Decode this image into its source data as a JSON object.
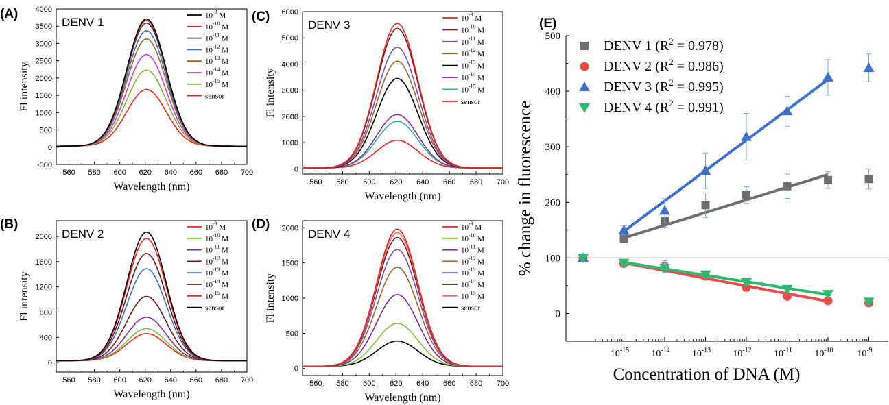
{
  "panels": [
    {
      "letter": "(A)",
      "label": "DENV 1",
      "xlabel": "Wavelength (nm)",
      "ylabel": "Fl intensity",
      "xlim": [
        550,
        700
      ],
      "ylim": [
        -500,
        4000
      ],
      "xticks": [
        560,
        580,
        600,
        620,
        640,
        660,
        680,
        700
      ],
      "yticks": [
        -500,
        0,
        500,
        1000,
        1500,
        2000,
        2500,
        3000,
        3500,
        4000
      ],
      "legend": [
        {
          "base": "10",
          "exp": "-9",
          "unit": "M",
          "color": "#000000"
        },
        {
          "base": "10",
          "exp": "-10",
          "unit": "M",
          "color": "#e8261d"
        },
        {
          "base": "10",
          "exp": "-11",
          "unit": "M",
          "color": "#3a3a3a"
        },
        {
          "base": "10",
          "exp": "-12",
          "unit": "M",
          "color": "#3d6fb0"
        },
        {
          "base": "10",
          "exp": "-13",
          "unit": "M",
          "color": "#a2622a"
        },
        {
          "base": "10",
          "exp": "-14",
          "unit": "M",
          "color": "#c83fc8"
        },
        {
          "base": "10",
          "exp": "-15",
          "unit": "M",
          "color": "#8cb338"
        },
        {
          "base": "sensor",
          "exp": "",
          "unit": "",
          "color": "#e8261d"
        }
      ],
      "peaks": [
        3680,
        3640,
        3560,
        3340,
        3100,
        2650,
        2200,
        1640
      ]
    },
    {
      "letter": "(B)",
      "label": "DENV 2",
      "xlabel": "Wavelength (nm)",
      "ylabel": "Fl intensity",
      "xlim": [
        550,
        700
      ],
      "ylim": [
        -150,
        2250
      ],
      "xticks": [
        560,
        580,
        600,
        620,
        640,
        660,
        680,
        700
      ],
      "yticks": [
        0,
        400,
        800,
        1200,
        1600,
        2000
      ],
      "legend": [
        {
          "base": "10",
          "exp": "-9",
          "unit": "M",
          "color": "#e8261d"
        },
        {
          "base": "10",
          "exp": "-10",
          "unit": "M",
          "color": "#7cc242"
        },
        {
          "base": "10",
          "exp": "-11",
          "unit": "M",
          "color": "#7a2a9e"
        },
        {
          "base": "10",
          "exp": "-12",
          "unit": "M",
          "color": "#6b1a1a"
        },
        {
          "base": "10",
          "exp": "-13",
          "unit": "M",
          "color": "#3d6fb0"
        },
        {
          "base": "10",
          "exp": "-14",
          "unit": "M",
          "color": "#6b1a1a"
        },
        {
          "base": "10",
          "exp": "-15",
          "unit": "M",
          "color": "#e8261d"
        },
        {
          "base": "sensor",
          "exp": "",
          "unit": "",
          "color": "#000000"
        }
      ],
      "peaks": [
        1940,
        510,
        690,
        1700,
        1460,
        1020,
        430,
        2040
      ]
    },
    {
      "letter": "(C)",
      "label": "DENV 3",
      "xlabel": "Wavelength (nm)",
      "ylabel": "Fl intensity",
      "xlim": [
        550,
        700
      ],
      "ylim": [
        -200,
        6000
      ],
      "xticks": [
        560,
        580,
        600,
        620,
        640,
        660,
        680,
        700
      ],
      "yticks": [
        0,
        1000,
        2000,
        3000,
        4000,
        5000,
        6000
      ],
      "legend": [
        {
          "base": "10",
          "exp": "-9",
          "unit": "M",
          "color": "#e8261d"
        },
        {
          "base": "10",
          "exp": "-10",
          "unit": "M",
          "color": "#6b1a1a"
        },
        {
          "base": "10",
          "exp": "-11",
          "unit": "M",
          "color": "#7b4fb8"
        },
        {
          "base": "10",
          "exp": "-12",
          "unit": "M",
          "color": "#a2622a"
        },
        {
          "base": "10",
          "exp": "-13",
          "unit": "M",
          "color": "#000000"
        },
        {
          "base": "10",
          "exp": "-14",
          "unit": "M",
          "color": "#8a2a9e"
        },
        {
          "base": "10",
          "exp": "-15",
          "unit": "M",
          "color": "#2fb59a"
        },
        {
          "base": "sensor",
          "exp": "",
          "unit": "",
          "color": "#e8261d"
        }
      ],
      "peaks": [
        5520,
        5330,
        4610,
        4080,
        3420,
        2040,
        1780,
        1060
      ]
    },
    {
      "letter": "(D)",
      "label": "DENV 4",
      "xlabel": "Wavelength (nm)",
      "ylabel": "Fl intensity",
      "xlim": [
        550,
        700
      ],
      "ylim": [
        -100,
        2100
      ],
      "xticks": [
        560,
        580,
        600,
        620,
        640,
        660,
        680,
        700
      ],
      "yticks": [
        0,
        500,
        1000,
        1500,
        2000
      ],
      "legend": [
        {
          "base": "10",
          "exp": "-9",
          "unit": "M",
          "color": "#e8261d"
        },
        {
          "base": "10",
          "exp": "-10",
          "unit": "M",
          "color": "#7cc242"
        },
        {
          "base": "10",
          "exp": "-11",
          "unit": "M",
          "color": "#7a2a9e"
        },
        {
          "base": "10",
          "exp": "-12",
          "unit": "M",
          "color": "#a2622a"
        },
        {
          "base": "10",
          "exp": "-13",
          "unit": "M",
          "color": "#7b4fb8"
        },
        {
          "base": "10",
          "exp": "-14",
          "unit": "M",
          "color": "#6b1a1a"
        },
        {
          "base": "10",
          "exp": "-15",
          "unit": "M",
          "color": "#ee6b6b"
        },
        {
          "base": "sensor",
          "exp": "",
          "unit": "",
          "color": "#000000"
        }
      ],
      "peaks": [
        1950,
        610,
        1020,
        1410,
        1660,
        1830,
        1900,
        360
      ]
    }
  ],
  "chart_data": [
    {
      "type": "line",
      "panel": "(A)",
      "title": "DENV 1",
      "xlabel": "Wavelength (nm)",
      "ylabel": "Fl intensity",
      "xlim": [
        550,
        700
      ],
      "ylim": [
        -500,
        4000
      ],
      "peak_wavelength": 621,
      "series": [
        {
          "name": "10-9 M",
          "peak": 3680
        },
        {
          "name": "10-10 M",
          "peak": 3640
        },
        {
          "name": "10-11 M",
          "peak": 3560
        },
        {
          "name": "10-12 M",
          "peak": 3340
        },
        {
          "name": "10-13 M",
          "peak": 3100
        },
        {
          "name": "10-14 M",
          "peak": 2650
        },
        {
          "name": "10-15 M",
          "peak": 2200
        },
        {
          "name": "sensor",
          "peak": 1640
        }
      ]
    },
    {
      "type": "line",
      "panel": "(B)",
      "title": "DENV 2",
      "xlabel": "Wavelength (nm)",
      "ylabel": "Fl intensity",
      "xlim": [
        550,
        700
      ],
      "ylim": [
        -150,
        2250
      ],
      "peak_wavelength": 621,
      "series": [
        {
          "name": "10-9 M",
          "peak": 1940
        },
        {
          "name": "10-10 M",
          "peak": 510
        },
        {
          "name": "10-11 M",
          "peak": 690
        },
        {
          "name": "10-12 M",
          "peak": 1700
        },
        {
          "name": "10-13 M",
          "peak": 1460
        },
        {
          "name": "10-14 M",
          "peak": 1020
        },
        {
          "name": "10-15 M",
          "peak": 430
        },
        {
          "name": "sensor",
          "peak": 2040
        }
      ]
    },
    {
      "type": "line",
      "panel": "(C)",
      "title": "DENV 3",
      "xlabel": "Wavelength (nm)",
      "ylabel": "Fl intensity",
      "xlim": [
        550,
        700
      ],
      "ylim": [
        -200,
        6000
      ],
      "peak_wavelength": 621,
      "series": [
        {
          "name": "10-9 M",
          "peak": 5520
        },
        {
          "name": "10-10 M",
          "peak": 5330
        },
        {
          "name": "10-11 M",
          "peak": 4610
        },
        {
          "name": "10-12 M",
          "peak": 4080
        },
        {
          "name": "10-13 M",
          "peak": 3420
        },
        {
          "name": "10-14 M",
          "peak": 2040
        },
        {
          "name": "10-15 M",
          "peak": 1780
        },
        {
          "name": "sensor",
          "peak": 1060
        }
      ]
    },
    {
      "type": "line",
      "panel": "(D)",
      "title": "DENV 4",
      "xlabel": "Wavelength (nm)",
      "ylabel": "Fl intensity",
      "xlim": [
        550,
        700
      ],
      "ylim": [
        -100,
        2100
      ],
      "peak_wavelength": 621,
      "series": [
        {
          "name": "10-9 M",
          "peak": 1950
        },
        {
          "name": "10-10 M",
          "peak": 610
        },
        {
          "name": "10-11 M",
          "peak": 1020
        },
        {
          "name": "10-12 M",
          "peak": 1410
        },
        {
          "name": "10-13 M",
          "peak": 1660
        },
        {
          "name": "10-14 M",
          "peak": 1830
        },
        {
          "name": "10-15 M",
          "peak": 1900
        },
        {
          "name": "sensor",
          "peak": 360
        }
      ]
    },
    {
      "type": "scatter",
      "panel": "(E)",
      "xlabel": "Concentration of DNA (M)",
      "ylabel": "% change in fluorescence",
      "ylim": [
        -50,
        500
      ],
      "yticks": [
        0,
        100,
        200,
        300,
        400,
        500
      ],
      "x_exponents": [
        -16,
        -15,
        -14,
        -13,
        -12,
        -11,
        -10,
        -9
      ],
      "xtick_exponents": [
        -15,
        -14,
        -13,
        -12,
        -11,
        -10,
        -9
      ],
      "reference_line": 100,
      "series": [
        {
          "name": "DENV 1",
          "r2": "0.978",
          "marker": "square",
          "color": "#6e6e6e",
          "fit_color": "#6e6e6e",
          "values": [
            100,
            135,
            167,
            195,
            213,
            229,
            240,
            242
          ],
          "errors": [
            7,
            6,
            12,
            22,
            15,
            22,
            15,
            18
          ],
          "fit": [
            [
              -15,
              136
            ],
            [
              -10,
              250
            ]
          ]
        },
        {
          "name": "DENV 2",
          "r2": "0.986",
          "marker": "circle",
          "color": "#ee4b4b",
          "fit_color": "#ee4b4b",
          "values": [
            100,
            90,
            85,
            67,
            47,
            31,
            23,
            19
          ],
          "errors": [
            6,
            5,
            10,
            6,
            6,
            4,
            3,
            3
          ],
          "fit": [
            [
              -15,
              91
            ],
            [
              -10,
              22
            ]
          ]
        },
        {
          "name": "DENV 3",
          "r2": "0.995",
          "marker": "triangle-up",
          "color": "#3d72c8",
          "fit_color": "#3d72c8",
          "values": [
            100,
            150,
            185,
            257,
            318,
            364,
            425,
            442
          ],
          "errors": [
            7,
            8,
            22,
            32,
            42,
            27,
            32,
            25
          ],
          "fit": [
            [
              -15,
              148
            ],
            [
              -10,
              421
            ]
          ]
        },
        {
          "name": "DENV 4",
          "r2": "0.991",
          "marker": "triangle-down",
          "color": "#2fb870",
          "fit_color": "#2fb870",
          "values": [
            100,
            91,
            82,
            70,
            56,
            44,
            35,
            21
          ],
          "errors": [
            7,
            5,
            8,
            5,
            5,
            4,
            3,
            3
          ],
          "fit": [
            [
              -15,
              92
            ],
            [
              -10,
              34
            ]
          ]
        }
      ]
    }
  ],
  "panel_e": {
    "letter": "(E)",
    "xlabel": "Concentration of DNA (M)",
    "ylabel": "% change in fluorescence",
    "tick_base": "10",
    "legend_r2_prefix": "(R",
    "legend_r2_sup": "2",
    "legend_r2_eq": " = ",
    "legend_r2_suffix": ")"
  }
}
